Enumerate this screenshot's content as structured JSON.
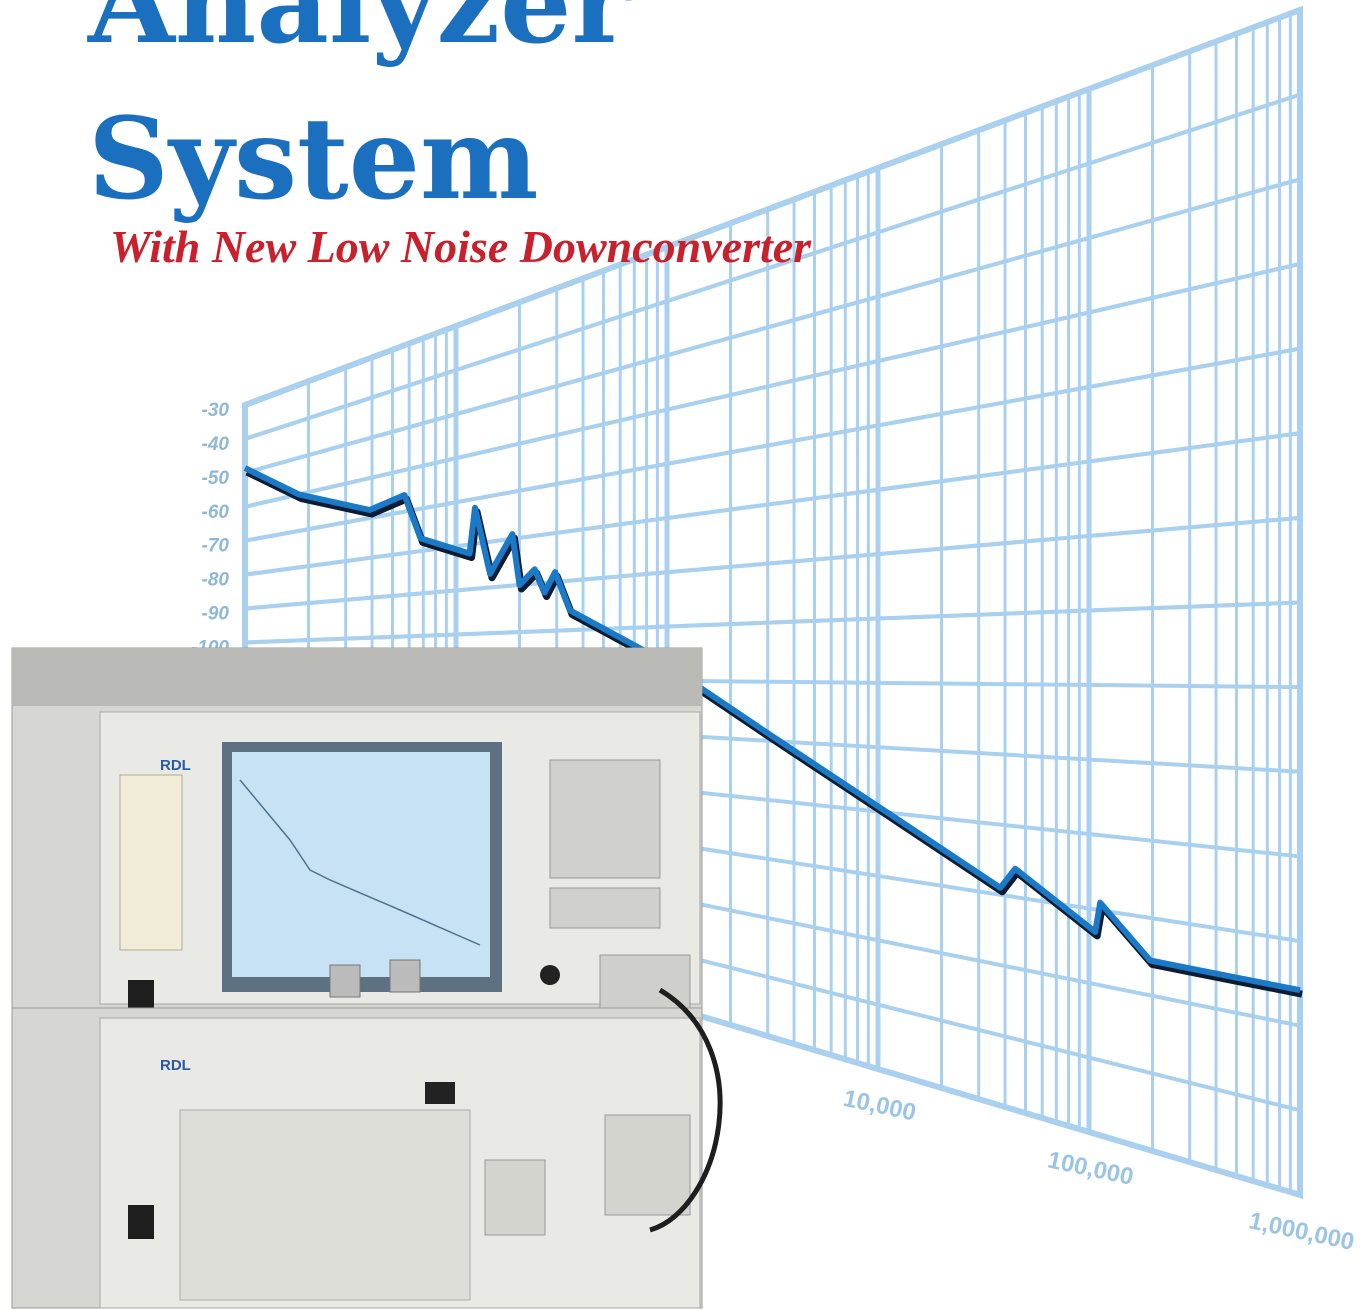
{
  "chart_data": {
    "type": "line",
    "title": [
      "Analyzer",
      "System"
    ],
    "subtitle": "With New Low Noise Downconverter",
    "x": [
      10,
      18,
      39,
      57,
      68,
      116,
      123,
      145,
      185,
      200,
      236,
      263,
      295,
      347,
      832,
      3090,
      12600,
      38000,
      44700,
      107000,
      113000,
      195000,
      336000,
      1000000
    ],
    "series": [
      {
        "color": "#1a7ac8",
        "values": [
          -48.6,
          -60,
          -68,
          -66,
          -77,
          -82,
          -72,
          -87,
          -79,
          -90,
          -87,
          -92,
          -88,
          -96,
          -105,
          -119,
          -131,
          -139,
          -136,
          -143,
          -139,
          -145.5,
          -145.6,
          -145.8
        ]
      }
    ],
    "xlog": true,
    "xlim": [
      10,
      1000000
    ],
    "xticks": [
      {
        "value": 10000,
        "label": "10,000"
      },
      {
        "value": 100000,
        "label": "100,000"
      },
      {
        "value": 1000000,
        "label": "1,000,000"
      }
    ],
    "ylim": [
      -170,
      -30
    ],
    "yticks": [
      -30,
      -40,
      -50,
      -60,
      -70,
      -80,
      -90,
      -100
    ],
    "grid": true,
    "grid_color": "#a9d1ef"
  },
  "instrument": {
    "labels": [
      "RDL",
      "RDL"
    ]
  }
}
